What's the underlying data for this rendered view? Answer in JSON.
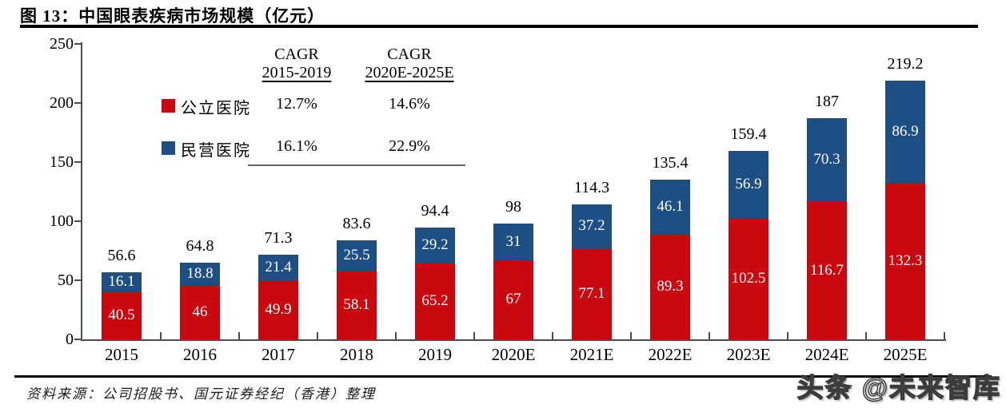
{
  "header": {
    "title": "图 13：中国眼表疾病市场规模（亿元）"
  },
  "legend_table": {
    "col1_header_line1": "CAGR",
    "col1_header_line2": "2015-2019",
    "col2_header_line1": "CAGR",
    "col2_header_line2": "2020E-2025E",
    "rows": [
      {
        "label": "公立医院",
        "swatch_color": "#C9090F",
        "cagr_2015_2019": "12.7%",
        "cagr_2020e_2025e": "14.6%"
      },
      {
        "label": "民营医院",
        "swatch_color": "#1D4E84",
        "cagr_2015_2019": "16.1%",
        "cagr_2020e_2025e": "22.9%"
      }
    ]
  },
  "chart_data": {
    "type": "bar",
    "stacked": true,
    "title": "中国眼表疾病市场规模（亿元）",
    "categories": [
      "2015",
      "2016",
      "2017",
      "2018",
      "2019",
      "2020E",
      "2021E",
      "2022E",
      "2023E",
      "2024E",
      "2025E"
    ],
    "series": [
      {
        "name": "公立医院",
        "color": "#C9090F",
        "values": [
          40.5,
          46,
          49.9,
          58.1,
          65.2,
          67,
          77.1,
          89.3,
          102.5,
          116.7,
          132.3
        ]
      },
      {
        "name": "民营医院",
        "color": "#1D4E84",
        "values": [
          16.1,
          18.8,
          21.4,
          25.5,
          29.2,
          31,
          37.2,
          46.1,
          56.9,
          70.3,
          86.9
        ]
      }
    ],
    "totals": [
      56.6,
      64.8,
      71.3,
      83.6,
      94.4,
      98,
      114.3,
      135.4,
      159.4,
      187,
      219.2
    ],
    "xlabel": "",
    "ylabel": "",
    "ylim": [
      0,
      250
    ],
    "yticks": [
      0,
      50,
      100,
      150,
      200,
      250
    ],
    "grid": false,
    "legend_position": "top-left"
  },
  "footer": {
    "source": "资料来源：公司招股书、国元证券经纪（香港）整理",
    "watermark": "头条 @未来智库"
  }
}
